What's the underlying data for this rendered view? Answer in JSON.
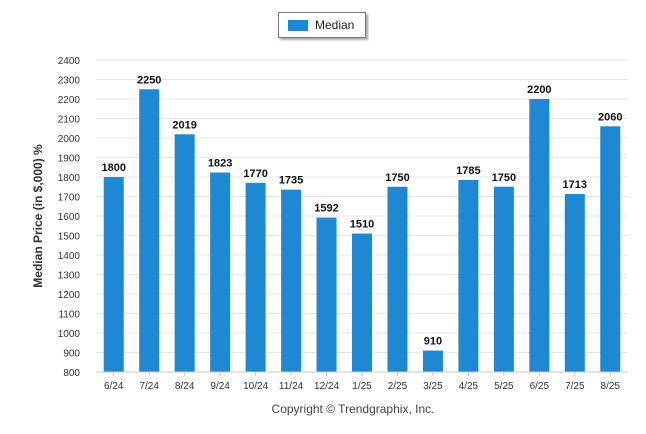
{
  "chart_data": {
    "type": "bar",
    "categories": [
      "6/24",
      "7/24",
      "8/24",
      "9/24",
      "10/24",
      "11/24",
      "12/24",
      "1/25",
      "2/25",
      "3/25",
      "4/25",
      "5/25",
      "6/25",
      "7/25",
      "8/25"
    ],
    "series": [
      {
        "name": "Median",
        "values": [
          1800,
          2250,
          2019,
          1823,
          1770,
          1735,
          1592,
          1510,
          1750,
          910,
          1785,
          1750,
          2200,
          1713,
          2060
        ]
      }
    ],
    "ylabel": "Median Price (in $,000) %",
    "ylim": [
      800,
      2400
    ],
    "yticks": [
      800,
      900,
      1000,
      1100,
      1200,
      1300,
      1400,
      1500,
      1600,
      1700,
      1800,
      1900,
      2000,
      2100,
      2200,
      2300,
      2400
    ],
    "grid": true,
    "legend_position": "top-center",
    "bar_color": "#1e88d2"
  },
  "footer": {
    "copyright": "Copyright © Trendgraphix, Inc."
  }
}
